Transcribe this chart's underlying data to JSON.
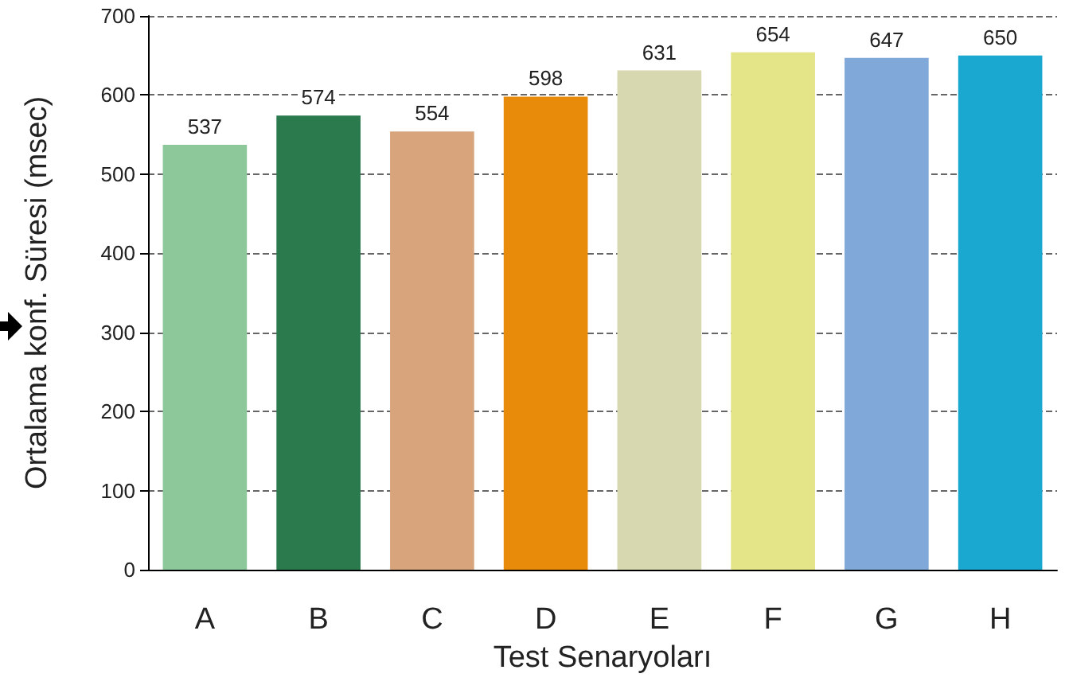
{
  "chart_data": {
    "type": "bar",
    "xlabel": "Test Senaryoları",
    "ylabel": "Ortalama konf. Süresi (msec)",
    "categories": [
      "A",
      "B",
      "C",
      "D",
      "E",
      "F",
      "G",
      "H"
    ],
    "values": [
      537,
      574,
      554,
      598,
      631,
      654,
      647,
      650
    ],
    "colors": [
      "#8cc89a",
      "#2a7a4e",
      "#d8a47c",
      "#e88a0a",
      "#d8d8b0",
      "#e4e488",
      "#80a8d8",
      "#1aa8d0"
    ],
    "ylim": [
      0,
      700
    ],
    "yticks": [
      0,
      100,
      200,
      300,
      400,
      500,
      600,
      700
    ],
    "grid": "y",
    "data_labels": true
  }
}
